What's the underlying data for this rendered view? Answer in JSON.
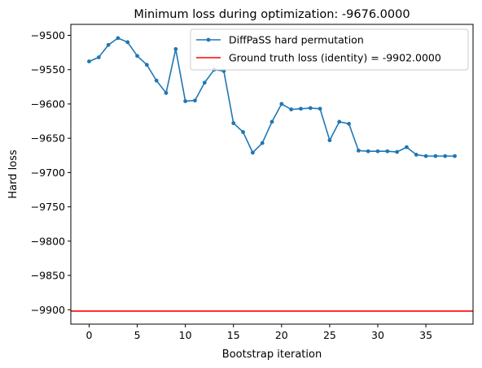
{
  "chart_data": {
    "type": "line",
    "title": "Minimum loss during optimization: -9676.0000",
    "xlabel": "Bootstrap iteration",
    "ylabel": "Hard loss",
    "xlim": [
      -1.9,
      39.9
    ],
    "ylim": [
      -9921,
      -9484
    ],
    "xticks": [
      0,
      5,
      10,
      15,
      20,
      25,
      30,
      35
    ],
    "yticks": [
      -9500,
      -9550,
      -9600,
      -9650,
      -9700,
      -9750,
      -9800,
      -9850,
      -9900
    ],
    "legend_position": "top-right",
    "series": [
      {
        "name": "DiffPaSS hard permutation",
        "color": "#1f77b4",
        "marker": "circle",
        "x": [
          0,
          1,
          2,
          3,
          4,
          5,
          6,
          7,
          8,
          9,
          10,
          11,
          12,
          13,
          14,
          15,
          16,
          17,
          18,
          19,
          20,
          21,
          22,
          23,
          24,
          25,
          26,
          27,
          28,
          29,
          30,
          31,
          32,
          33,
          34,
          35,
          36,
          37,
          38
        ],
        "values": [
          -9538,
          -9532,
          -9514,
          -9504,
          -9510,
          -9530,
          -9543,
          -9566,
          -9584,
          -9520,
          -9596,
          -9595,
          -9569,
          -9550,
          -9552,
          -9628,
          -9641,
          -9671,
          -9657,
          -9626,
          -9600,
          -9608,
          -9607,
          -9606,
          -9607,
          -9653,
          -9626,
          -9629,
          -9668,
          -9669,
          -9669,
          -9669,
          -9670,
          -9663,
          -9674,
          -9676,
          -9676,
          -9676,
          -9676
        ]
      }
    ],
    "hlines": [
      {
        "name": "Ground truth loss (identity) = -9902.0000",
        "value": -9902,
        "color": "#ff0000"
      }
    ]
  }
}
